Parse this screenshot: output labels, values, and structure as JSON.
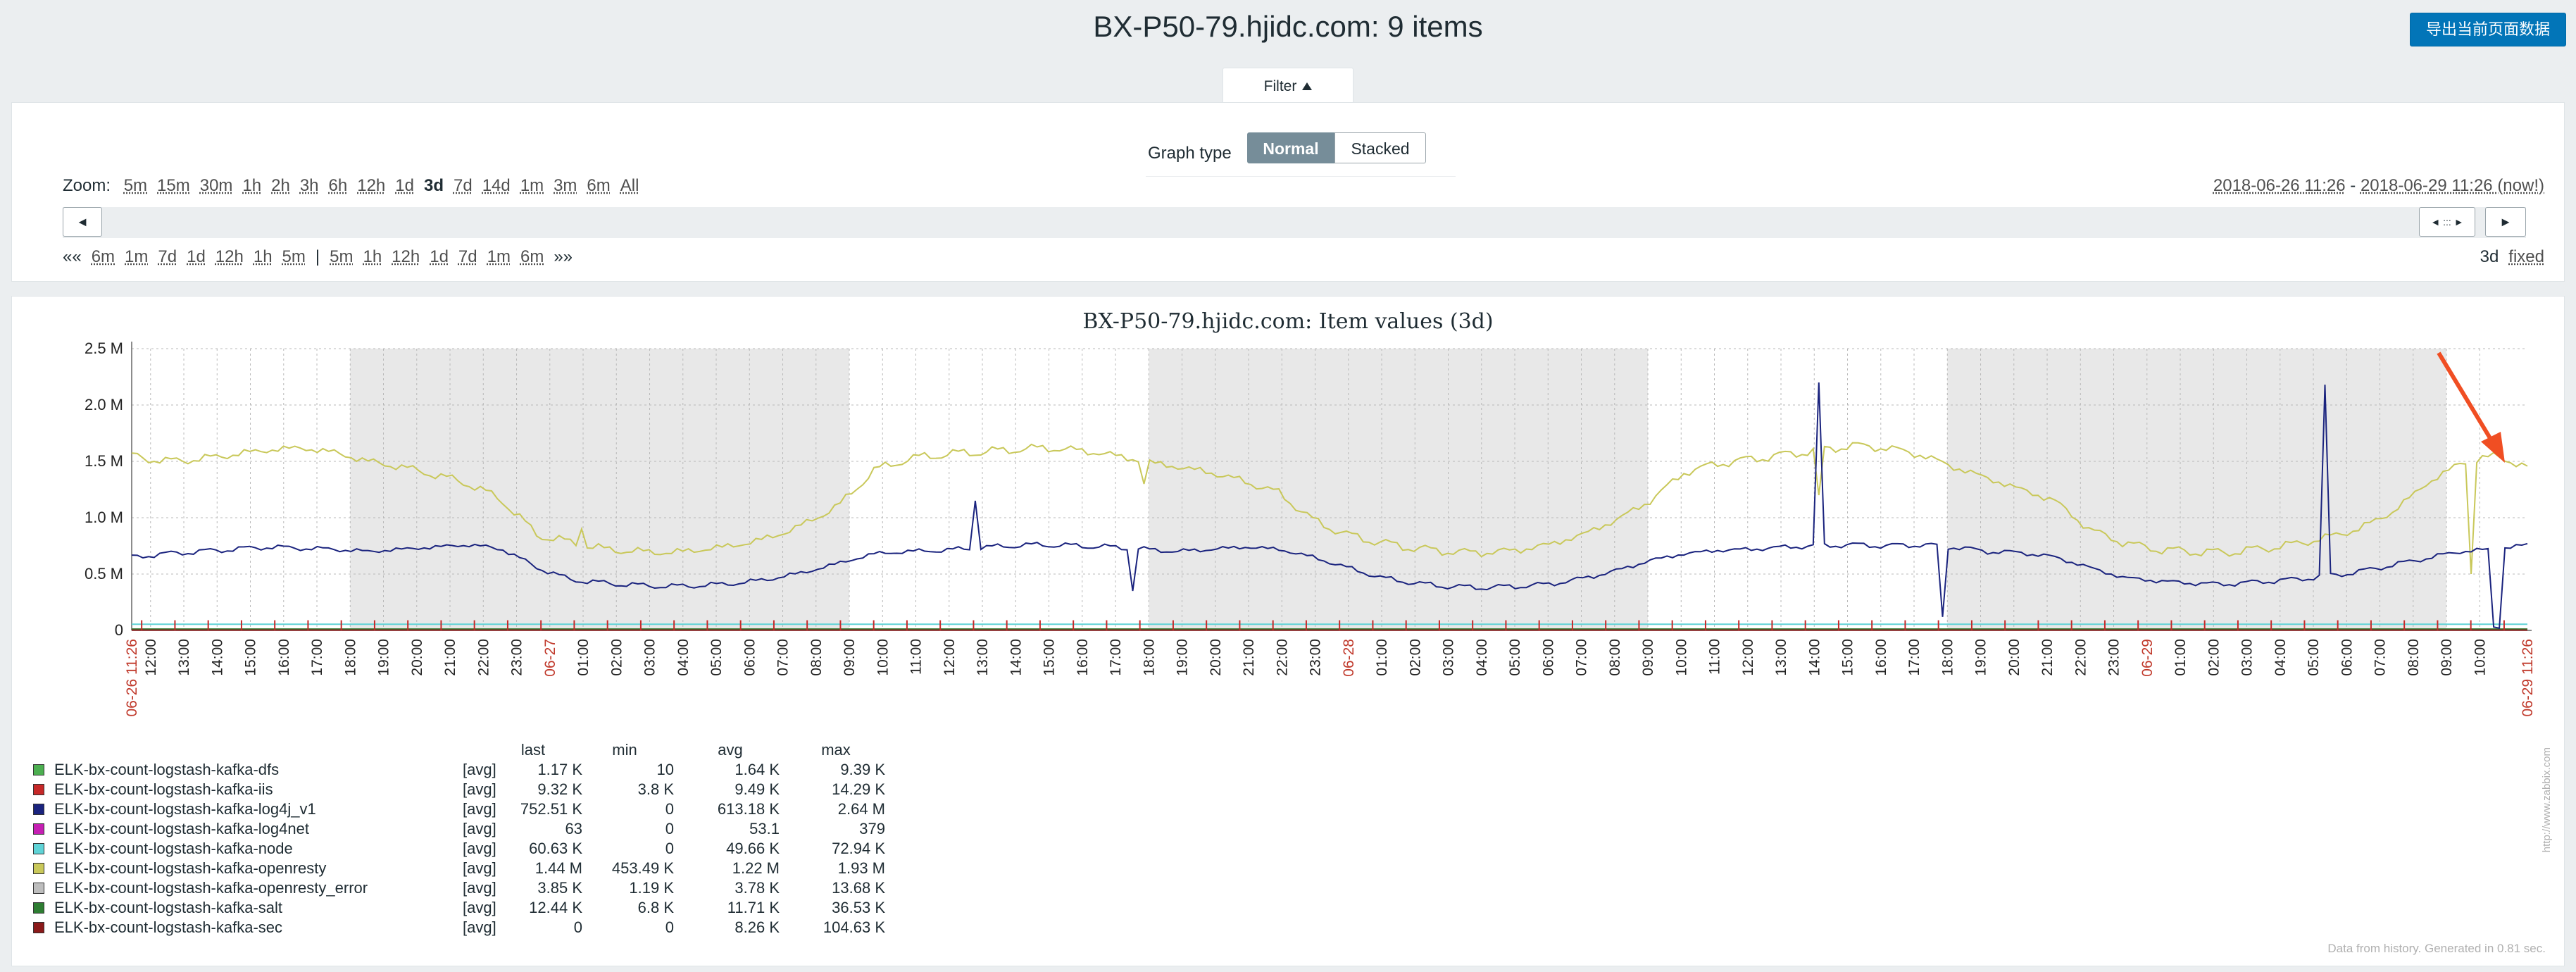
{
  "header": {
    "title": "BX-P50-79.hjidc.com: 9 items",
    "export_label": "导出当前页面数据"
  },
  "filter": {
    "tab_label": "Filter",
    "graph_type_label": "Graph type",
    "graph_type_options": [
      "Normal",
      "Stacked"
    ],
    "selected_graph_type": "Normal",
    "zoom_label": "Zoom:",
    "zoom_options": [
      "5m",
      "15m",
      "30m",
      "1h",
      "2h",
      "3h",
      "6h",
      "12h",
      "1d",
      "3d",
      "7d",
      "14d",
      "1m",
      "3m",
      "6m",
      "All"
    ],
    "zoom_selected": "3d",
    "range_from": "2018-06-26 11:26",
    "range_sep": " - ",
    "range_to": "2018-06-29 11:26 (now!)",
    "nav_back_all": "««",
    "nav_back": [
      "6m",
      "1m",
      "7d",
      "1d",
      "12h",
      "1h",
      "5m"
    ],
    "nav_sep": "|",
    "nav_fwd": [
      "5m",
      "1h",
      "12h",
      "1d",
      "7d",
      "1m",
      "6m"
    ],
    "nav_fwd_all": "»»",
    "period_label": "3d",
    "fixed_label": "fixed",
    "slider_left_arrow": "◄",
    "slider_right_arrow": "►",
    "slider_handle": "◄ ::: ►"
  },
  "graph": {
    "title": "BX-P50-79.hjidc.com: Item values (3d)",
    "footer": "Data from history. Generated in 0.81 sec.",
    "watermark": "http://www.zabbix.com"
  },
  "chart_data": {
    "type": "line",
    "title": "BX-P50-79.hjidc.com: Item values (3d)",
    "y_ticks": [
      "2.5 M",
      "2.0 M",
      "1.5 M",
      "1.0 M",
      "0.5 M",
      "0"
    ],
    "ylim": [
      0,
      2500000
    ],
    "x_start_label": "06-26 11:26",
    "x_end_label": "06-29 11:26",
    "x_hours_from": 12,
    "x_hours_count": 71,
    "day_labels": [
      {
        "label": "06-27",
        "at_hour": 24
      },
      {
        "label": "06-28",
        "at_hour": 48
      },
      {
        "label": "06-29",
        "at_hour": 72
      }
    ],
    "hour_labels": [
      "12:00",
      "13:00",
      "14:00",
      "15:00",
      "16:00",
      "17:00",
      "18:00",
      "19:00",
      "20:00",
      "21:00",
      "22:00",
      "23:00",
      "06-27",
      "01:00",
      "02:00",
      "03:00",
      "04:00",
      "05:00",
      "06:00",
      "07:00",
      "08:00",
      "09:00",
      "10:00",
      "11:00",
      "12:00",
      "13:00",
      "14:00",
      "15:00",
      "16:00",
      "17:00",
      "18:00",
      "19:00",
      "20:00",
      "21:00",
      "22:00",
      "23:00",
      "06-28",
      "01:00",
      "02:00",
      "03:00",
      "04:00",
      "05:00",
      "06:00",
      "07:00",
      "08:00",
      "09:00",
      "10:00",
      "11:00",
      "12:00",
      "13:00",
      "14:00",
      "15:00",
      "16:00",
      "17:00",
      "18:00",
      "19:00",
      "20:00",
      "21:00",
      "22:00",
      "23:00",
      "06-29",
      "01:00",
      "02:00",
      "03:00",
      "04:00",
      "05:00",
      "06:00",
      "07:00",
      "08:00",
      "09:00",
      "10:00",
      "11:00"
    ],
    "night_bands_hours": [
      [
        18,
        33
      ],
      [
        42,
        57
      ],
      [
        66,
        81
      ]
    ],
    "legend_header": [
      "last",
      "min",
      "avg",
      "max"
    ],
    "series": [
      {
        "name": "ELK-bx-count-logstash-kafka-dfs",
        "color": "#4caf50",
        "fn": "[avg]",
        "last": "1.17 K",
        "min": "10",
        "avg": "1.64 K",
        "max": "9.39 K"
      },
      {
        "name": "ELK-bx-count-logstash-kafka-iis",
        "color": "#c62828",
        "fn": "[avg]",
        "last": "9.32 K",
        "min": "3.8 K",
        "avg": "9.49 K",
        "max": "14.29 K"
      },
      {
        "name": "ELK-bx-count-logstash-kafka-log4j_v1",
        "color": "#1a237e",
        "fn": "[avg]",
        "last": "752.51 K",
        "min": "0",
        "avg": "613.18 K",
        "max": "2.64 M"
      },
      {
        "name": "ELK-bx-count-logstash-kafka-log4net",
        "color": "#c51fb3",
        "fn": "[avg]",
        "last": "63",
        "min": "0",
        "avg": "53.1",
        "max": "379"
      },
      {
        "name": "ELK-bx-count-logstash-kafka-node",
        "color": "#5fd3d6",
        "fn": "[avg]",
        "last": "60.63 K",
        "min": "0",
        "avg": "49.66 K",
        "max": "72.94 K"
      },
      {
        "name": "ELK-bx-count-logstash-kafka-openresty",
        "color": "#c9c85a",
        "fn": "[avg]",
        "last": "1.44 M",
        "min": "453.49 K",
        "avg": "1.22 M",
        "max": "1.93 M"
      },
      {
        "name": "ELK-bx-count-logstash-kafka-openresty_error",
        "color": "#bdbdbd",
        "fn": "[avg]",
        "last": "3.85 K",
        "min": "1.19 K",
        "avg": "3.78 K",
        "max": "13.68 K"
      },
      {
        "name": "ELK-bx-count-logstash-kafka-salt",
        "color": "#2e7d32",
        "fn": "[avg]",
        "last": "12.44 K",
        "min": "6.8 K",
        "avg": "11.71 K",
        "max": "36.53 K"
      },
      {
        "name": "ELK-bx-count-logstash-kafka-sec",
        "color": "#8b1a1a",
        "fn": "[avg]",
        "last": "0",
        "min": "0",
        "avg": "8.26 K",
        "max": "104.63 K"
      }
    ],
    "openresty_hourly": [
      1550000,
      1500000,
      1520000,
      1560000,
      1600000,
      1620000,
      1580000,
      1500000,
      1450000,
      1380000,
      1300000,
      1150000,
      850000,
      780000,
      720000,
      700000,
      690000,
      720000,
      760000,
      830000,
      950000,
      1120000,
      1420000,
      1520000,
      1560000,
      1580000,
      1600000,
      1620000,
      1600000,
      1560000,
      1500000,
      1450000,
      1400000,
      1320000,
      1220000,
      980000,
      850000,
      780000,
      730000,
      700000,
      690000,
      710000,
      760000,
      850000,
      980000,
      1150000,
      1400000,
      1480000,
      1520000,
      1560000,
      1600000,
      1640000,
      1620000,
      1560000,
      1450000,
      1350000,
      1250000,
      1150000,
      900000,
      780000,
      720000,
      700000,
      690000,
      720000,
      760000,
      820000,
      900000,
      1050000,
      1300000,
      1480000,
      1550000,
      1450000
    ],
    "log4j_hourly": [
      650000,
      680000,
      700000,
      720000,
      740000,
      730000,
      720000,
      700000,
      720000,
      740000,
      760000,
      720000,
      560000,
      450000,
      420000,
      400000,
      390000,
      400000,
      420000,
      460000,
      520000,
      600000,
      680000,
      700000,
      710000,
      730000,
      750000,
      760000,
      750000,
      740000,
      720000,
      700000,
      720000,
      740000,
      720000,
      650000,
      560000,
      470000,
      420000,
      390000,
      380000,
      390000,
      410000,
      460000,
      530000,
      620000,
      680000,
      710000,
      720000,
      740000,
      750000,
      760000,
      750000,
      760000,
      740000,
      700000,
      690000,
      650000,
      560000,
      470000,
      440000,
      420000,
      410000,
      430000,
      450000,
      480000,
      520000,
      580000,
      640000,
      700000,
      720000,
      760000
    ]
  }
}
